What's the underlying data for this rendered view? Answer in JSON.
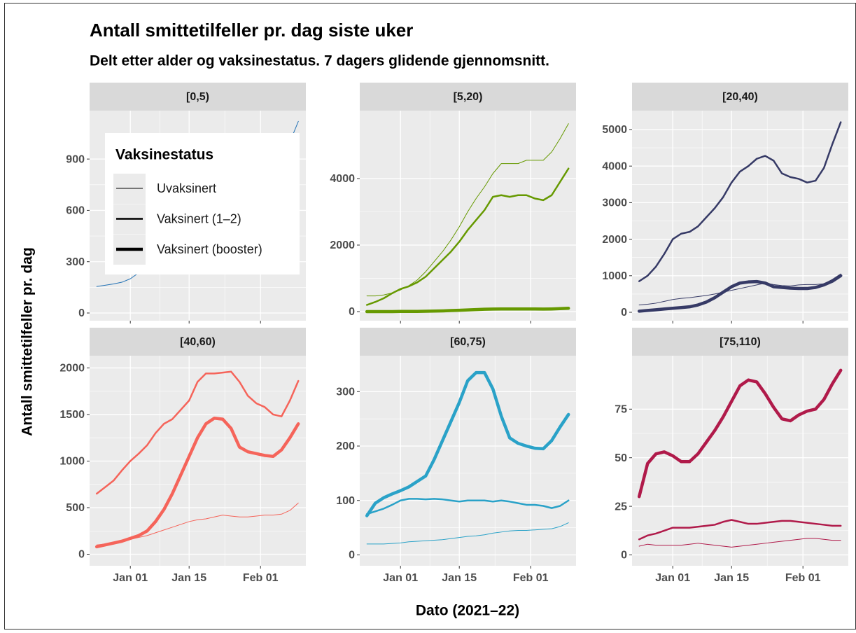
{
  "title": "Antall smittetilfeller pr. dag siste uker",
  "subtitle": "Delt etter alder og vaksinestatus. 7 dagers glidende gjennomsnitt.",
  "x_label": "Dato (2021–22)",
  "y_label": "Antall smittetilfeller pr. dag",
  "legend": {
    "title": "Vaksinestatus",
    "entries": [
      "Uvaksinert",
      "Vaksinert (1–2)",
      "Vaksinert (booster)"
    ],
    "line_widths": [
      1,
      2.5,
      4.5
    ],
    "position": "top-left"
  },
  "grid": true,
  "x": [
    -8,
    -6,
    -4,
    -2,
    0,
    2,
    4,
    6,
    8,
    10,
    12,
    14,
    16,
    18,
    20,
    22,
    24,
    26,
    28,
    30,
    32,
    34,
    36,
    38,
    40
  ],
  "xlim": [
    -9.7,
    41.8
  ],
  "xticks": [
    {
      "value": 0,
      "label": "Jan 01"
    },
    {
      "value": 14,
      "label": "Jan 15"
    },
    {
      "value": 31,
      "label": "Feb 01"
    }
  ],
  "chart_data": [
    {
      "type": "line",
      "title": "[0,5)",
      "ylim": [
        -45,
        1183
      ],
      "yticks": [
        0,
        300,
        600,
        900
      ],
      "series": [
        {
          "color": "#2171b5",
          "values": [
            155,
            162,
            170,
            180,
            200,
            235,
            280,
            330,
            390,
            450,
            510,
            570,
            620,
            670,
            710,
            740,
            760,
            780,
            790,
            800,
            815,
            850,
            910,
            1000,
            1120
          ]
        }
      ]
    },
    {
      "type": "line",
      "title": "[5,20)",
      "ylim": [
        -274,
        6042
      ],
      "yticks": [
        0,
        2000,
        4000
      ],
      "series": [
        {
          "color": "#669900",
          "values": [
            470,
            470,
            500,
            560,
            650,
            780,
            950,
            1200,
            1500,
            1800,
            2150,
            2550,
            3000,
            3400,
            3750,
            4150,
            4450,
            4450,
            4450,
            4550,
            4550,
            4550,
            4800,
            5200,
            5650
          ]
        },
        {
          "color": "#669900",
          "values": [
            200,
            290,
            400,
            550,
            680,
            760,
            880,
            1050,
            1300,
            1550,
            1800,
            2100,
            2450,
            2750,
            3050,
            3450,
            3500,
            3450,
            3500,
            3500,
            3400,
            3350,
            3500,
            3900,
            4300
          ]
        },
        {
          "color": "#669900",
          "values": [
            0,
            0,
            0,
            0,
            5,
            5,
            5,
            10,
            15,
            20,
            30,
            40,
            50,
            60,
            70,
            75,
            80,
            80,
            80,
            80,
            80,
            75,
            80,
            90,
            100
          ]
        }
      ]
    },
    {
      "type": "line",
      "title": "[20,40)",
      "ylim": [
        -230,
        5517
      ],
      "yticks": [
        0,
        1000,
        2000,
        3000,
        4000,
        5000
      ],
      "series": [
        {
          "color": "#363a66",
          "values": [
            200,
            220,
            250,
            300,
            350,
            380,
            400,
            430,
            460,
            500,
            550,
            600,
            650,
            700,
            750,
            800,
            760,
            730,
            720,
            750,
            760,
            760,
            780,
            900,
            1050
          ]
        },
        {
          "color": "#363a66",
          "values": [
            850,
            1000,
            1250,
            1600,
            2000,
            2150,
            2200,
            2350,
            2600,
            2850,
            3150,
            3550,
            3850,
            4000,
            4200,
            4280,
            4150,
            3800,
            3700,
            3650,
            3550,
            3600,
            3950,
            4600,
            5200
          ]
        },
        {
          "color": "#363a66",
          "values": [
            30,
            50,
            70,
            90,
            110,
            130,
            150,
            200,
            280,
            400,
            550,
            700,
            800,
            830,
            840,
            800,
            700,
            680,
            660,
            650,
            650,
            680,
            750,
            850,
            1000
          ]
        }
      ]
    },
    {
      "type": "line",
      "title": "[40,60)",
      "ylim": [
        -124,
        2131
      ],
      "yticks": [
        0,
        500,
        1000,
        1500,
        2000
      ],
      "series": [
        {
          "color": "#f5645a",
          "values": [
            100,
            110,
            120,
            140,
            160,
            180,
            200,
            230,
            260,
            290,
            320,
            350,
            370,
            380,
            400,
            420,
            410,
            400,
            400,
            410,
            420,
            420,
            430,
            470,
            550
          ]
        },
        {
          "color": "#f5645a",
          "values": [
            650,
            720,
            790,
            900,
            1000,
            1080,
            1170,
            1300,
            1400,
            1450,
            1550,
            1650,
            1850,
            1940,
            1940,
            1950,
            1960,
            1850,
            1700,
            1620,
            1580,
            1500,
            1480,
            1650,
            1860
          ]
        },
        {
          "color": "#f5645a",
          "values": [
            80,
            100,
            120,
            140,
            170,
            200,
            250,
            350,
            480,
            650,
            850,
            1050,
            1250,
            1400,
            1460,
            1450,
            1350,
            1150,
            1100,
            1080,
            1060,
            1050,
            1120,
            1250,
            1400
          ]
        }
      ]
    },
    {
      "type": "line",
      "title": "[60,75)",
      "ylim": [
        -20,
        366
      ],
      "yticks": [
        0,
        100,
        200,
        300
      ],
      "series": [
        {
          "color": "#2aa2c8",
          "values": [
            20,
            20,
            20,
            21,
            22,
            24,
            25,
            26,
            27,
            28,
            30,
            32,
            34,
            35,
            37,
            40,
            42,
            44,
            45,
            45,
            46,
            47,
            48,
            52,
            59
          ]
        },
        {
          "color": "#2aa2c8",
          "values": [
            75,
            80,
            85,
            92,
            100,
            103,
            103,
            102,
            103,
            102,
            100,
            98,
            100,
            100,
            100,
            98,
            100,
            98,
            95,
            92,
            92,
            90,
            86,
            90,
            100
          ]
        },
        {
          "color": "#2aa2c8",
          "values": [
            72,
            95,
            105,
            112,
            118,
            125,
            135,
            145,
            175,
            210,
            245,
            280,
            320,
            335,
            335,
            305,
            255,
            215,
            205,
            200,
            196,
            195,
            210,
            235,
            258
          ]
        }
      ]
    },
    {
      "type": "line",
      "title": "[75,110)",
      "ylim": [
        -5.6,
        102.5
      ],
      "yticks": [
        0,
        25,
        50,
        75
      ],
      "series": [
        {
          "color": "#b01a4a",
          "values": [
            4.5,
            5.5,
            5,
            5,
            5,
            5,
            5.5,
            6,
            5.5,
            5,
            4.5,
            4,
            4.5,
            5,
            5.5,
            6,
            6.5,
            7,
            7.5,
            8,
            8.5,
            8.5,
            8,
            7.5,
            7.5
          ]
        },
        {
          "color": "#b01a4a",
          "values": [
            8,
            10,
            11,
            12.5,
            14,
            14,
            14,
            14.5,
            15,
            15.5,
            17,
            18,
            17,
            16,
            16,
            16.5,
            17,
            17.5,
            17.5,
            17,
            16.5,
            16,
            15.5,
            15,
            15
          ]
        },
        {
          "color": "#b01a4a",
          "values": [
            30,
            47,
            52,
            53,
            51,
            48,
            48,
            52,
            58,
            64,
            71,
            79,
            87,
            90,
            89,
            83,
            76,
            70,
            69,
            72,
            74,
            75,
            80,
            88,
            95
          ]
        }
      ]
    }
  ]
}
